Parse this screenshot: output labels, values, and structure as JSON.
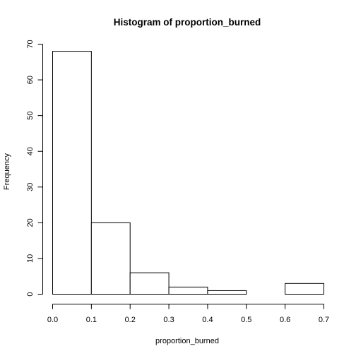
{
  "chart_data": {
    "type": "bar",
    "title": "Histogram of proportion_burned",
    "xlabel": "proportion_burned",
    "ylabel": "Frequency",
    "bins": [
      {
        "from": 0.0,
        "to": 0.1,
        "count": 68
      },
      {
        "from": 0.1,
        "to": 0.2,
        "count": 20
      },
      {
        "from": 0.2,
        "to": 0.3,
        "count": 6
      },
      {
        "from": 0.3,
        "to": 0.4,
        "count": 2
      },
      {
        "from": 0.4,
        "to": 0.5,
        "count": 1
      },
      {
        "from": 0.5,
        "to": 0.6,
        "count": 0
      },
      {
        "from": 0.6,
        "to": 0.7,
        "count": 3
      }
    ],
    "xlim": [
      0,
      0.7
    ],
    "ylim": [
      0,
      70
    ],
    "x_ticks": [
      "0.0",
      "0.1",
      "0.2",
      "0.3",
      "0.4",
      "0.5",
      "0.6",
      "0.7"
    ],
    "y_ticks": [
      "0",
      "10",
      "20",
      "30",
      "40",
      "50",
      "60",
      "70"
    ],
    "grid": false,
    "legend": "none"
  }
}
